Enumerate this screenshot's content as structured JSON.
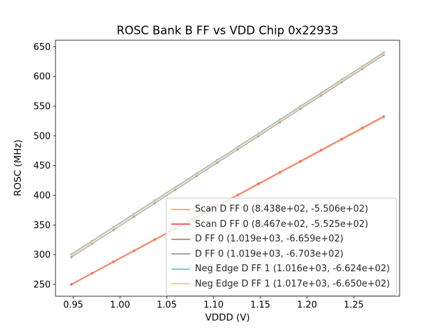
{
  "chart_data": {
    "type": "line",
    "title": "ROSC Bank B FF vs VDD Chip 0x22933",
    "xlabel": "VDDD (V)",
    "ylabel": "ROSC (MHz)",
    "xlim": [
      0.931,
      1.299
    ],
    "ylim": [
      230,
      661
    ],
    "grid": false,
    "legend_position": "lower right (inside axes)",
    "xtick_labels": [
      "0.95",
      "1.00",
      "1.05",
      "1.10",
      "1.15",
      "1.20",
      "1.25"
    ],
    "ytick_labels": [
      "250",
      "300",
      "350",
      "400",
      "450",
      "500",
      "550",
      "600",
      "650"
    ],
    "x_points": [
      0.948,
      0.97,
      0.993,
      1.015,
      1.037,
      1.059,
      1.082,
      1.104,
      1.126,
      1.148,
      1.171,
      1.193,
      1.215,
      1.237,
      1.259,
      1.282
    ],
    "series": [
      {
        "name": "Scan D FF 0",
        "label": "Scan D FF 0 (8.438e+02, -5.506e+02)",
        "slope": 843.8,
        "intercept": -550.6,
        "color": "#ffb070"
      },
      {
        "name": "Scan D FF 0",
        "label": "Scan D FF 0 (8.467e+02, -5.525e+02)",
        "slope": 846.7,
        "intercept": -552.5,
        "color": "#e8685a"
      },
      {
        "name": "D FF 0",
        "label": "D FF 0 (1.019e+03, -6.659e+02)",
        "slope": 1019.0,
        "intercept": -665.9,
        "color": "#b98f84"
      },
      {
        "name": "D FF 0",
        "label": "D FF 0 (1.019e+03, -6.703e+02)",
        "slope": 1019.0,
        "intercept": -670.3,
        "color": "#a3a3a3"
      },
      {
        "name": "Neg Edge D FF 1",
        "label": "Neg Edge D FF 1 (1.016e+03, -6.624e+02)",
        "slope": 1016.0,
        "intercept": -662.4,
        "color": "#7fc9dc"
      },
      {
        "name": "Neg Edge D FF 1",
        "label": "Neg Edge D FF 1 (1.017e+03, -6.650e+02)",
        "slope": 1017.0,
        "intercept": -665.0,
        "color": "#ffc88f"
      }
    ]
  }
}
